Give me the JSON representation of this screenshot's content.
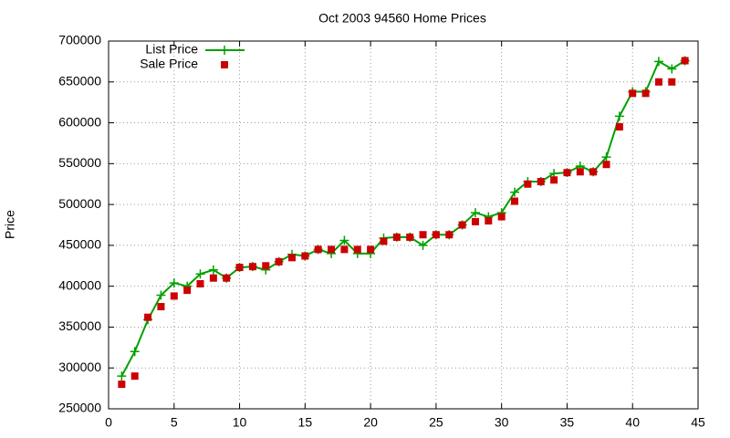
{
  "chart_data": {
    "type": "line",
    "title": "Oct 2003 94560 Home Prices",
    "y_label": "Price",
    "x": [
      1,
      2,
      3,
      4,
      5,
      6,
      7,
      8,
      9,
      10,
      11,
      12,
      13,
      14,
      15,
      16,
      17,
      18,
      19,
      20,
      21,
      22,
      23,
      24,
      25,
      26,
      27,
      28,
      29,
      30,
      31,
      32,
      33,
      34,
      35,
      36,
      37,
      38,
      39,
      40,
      41,
      42,
      43,
      44
    ],
    "series": [
      {
        "name": "List Price",
        "color": "#00a000",
        "style": "linespoints",
        "values": [
          290000,
          320000,
          359000,
          389000,
          404000,
          400000,
          415000,
          420000,
          410000,
          423000,
          424000,
          420000,
          430000,
          439000,
          437000,
          445000,
          440000,
          456000,
          440000,
          440000,
          459000,
          460000,
          460000,
          450000,
          463000,
          463000,
          475000,
          490000,
          485000,
          490000,
          515000,
          528000,
          528000,
          538000,
          539000,
          547000,
          540000,
          558000,
          608000,
          638000,
          638000,
          675000,
          666000,
          676000
        ]
      },
      {
        "name": "Sale Price",
        "color": "#cc0000",
        "style": "points",
        "values": [
          280000,
          290000,
          362000,
          375000,
          388000,
          395000,
          403000,
          410000,
          410000,
          423000,
          424000,
          425000,
          430000,
          435000,
          437000,
          445000,
          445000,
          445000,
          445000,
          445000,
          455000,
          460000,
          460000,
          463000,
          463000,
          463000,
          475000,
          479000,
          480000,
          485000,
          504000,
          525000,
          528000,
          530000,
          539000,
          540000,
          540000,
          549000,
          595000,
          636000,
          636000,
          650000,
          650000,
          676000
        ]
      }
    ],
    "xlim": [
      0,
      45
    ],
    "xticks": [
      0,
      5,
      10,
      15,
      20,
      25,
      30,
      35,
      40,
      45
    ],
    "ylim": [
      250000,
      700000
    ],
    "yticks": [
      250000,
      300000,
      350000,
      400000,
      450000,
      500000,
      550000,
      600000,
      650000,
      700000
    ],
    "grid": true,
    "legend": "top-left"
  }
}
